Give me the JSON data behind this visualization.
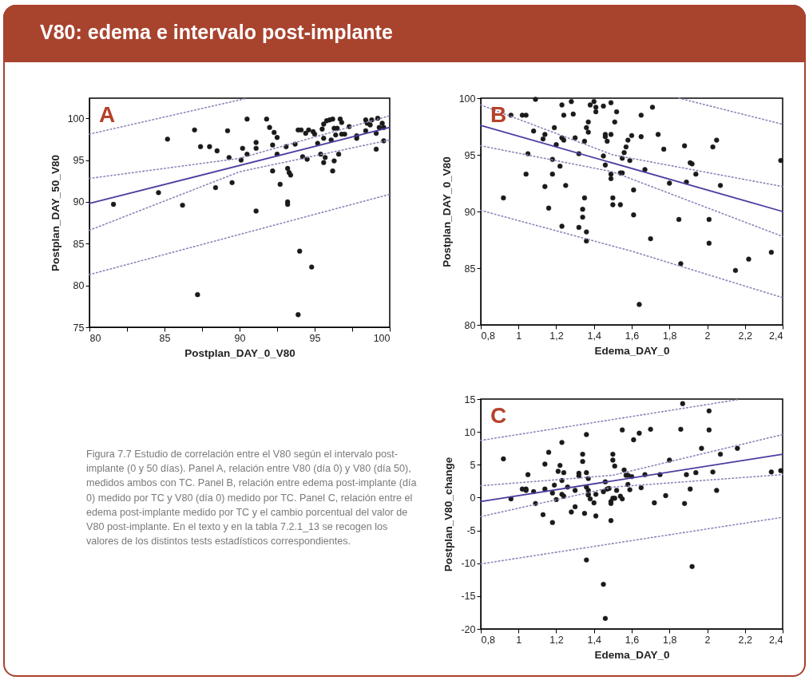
{
  "chart_data": [
    {
      "type": "scatter",
      "title": "V80: edema e intervalo post-implante",
      "xlabel": "Postplan_DAY_0_V80",
      "ylabel": "Postplan_DAY_50_V80",
      "annotations": [
        "A"
      ],
      "grid": false,
      "xlim": [
        80,
        100
      ],
      "xticks": [
        80,
        {
          "value": 82.5,
          "label": null
        },
        85,
        {
          "value": 87.5,
          "label": null
        },
        90,
        {
          "value": 92.5,
          "label": null
        },
        95,
        {
          "value": 97.5,
          "label": null
        },
        100
      ],
      "ylim": [
        75,
        102.4
      ],
      "yticks": [
        75,
        80,
        85,
        90,
        95,
        100
      ],
      "series": [
        {
          "type": "scatter",
          "marker": "circle",
          "color": "#1a1a1a",
          "x": [
            81.6,
            84.6,
            85.2,
            86.2,
            87.0,
            87.2,
            87.4,
            88.0,
            88.5,
            88.4,
            89.2,
            89.3,
            89.5,
            90.1,
            90.2,
            90.5,
            90.5,
            91.1,
            91.1,
            91.1,
            91.8,
            92.0,
            92.2,
            92.2,
            92.3,
            92.5,
            92.5,
            92.7,
            93.1,
            93.2,
            93.3,
            93.4,
            93.2,
            93.2,
            93.7,
            93.9,
            94.0,
            93.9,
            94.1,
            94.2,
            94.4,
            94.5,
            94.6,
            94.8,
            94.9,
            95.0,
            95.2,
            95.4,
            95.5,
            95.6,
            95.6,
            95.7,
            95.6,
            95.8,
            96.0,
            96.1,
            96.2,
            96.2,
            96.3,
            96.3,
            96.4,
            96.5,
            96.6,
            96.7,
            96.8,
            96.8,
            97.0,
            97.3,
            97.8,
            97.8,
            98.4,
            98.4,
            98.5,
            98.7,
            98.8,
            99.1,
            99.1,
            99.2,
            99.3,
            99.5,
            99.6,
            99.6
          ],
          "values": [
            89.7,
            91.1,
            97.5,
            89.6,
            98.6,
            78.9,
            96.6,
            96.6,
            96.1,
            91.7,
            98.5,
            95.3,
            92.3,
            95.0,
            96.4,
            99.9,
            95.7,
            97.1,
            96.4,
            88.9,
            99.9,
            98.9,
            96.8,
            93.7,
            98.3,
            97.7,
            95.7,
            92.1,
            96.6,
            94.0,
            93.5,
            93.2,
            90.0,
            89.7,
            96.9,
            98.6,
            84.1,
            76.5,
            98.6,
            95.4,
            98.2,
            95.1,
            98.6,
            82.2,
            98.4,
            98.1,
            97.0,
            95.7,
            98.7,
            99.3,
            94.7,
            95.3,
            97.6,
            99.7,
            99.8,
            97.4,
            99.9,
            93.7,
            94.9,
            98.8,
            98.0,
            98.8,
            95.7,
            99.9,
            99.5,
            98.1,
            98.1,
            99.0,
            97.9,
            97.6,
            99.8,
            98.5,
            99.4,
            99.2,
            99.8,
            96.3,
            98.2,
            100.0,
            98.9,
            99.4,
            97.3,
            98.9
          ]
        },
        {
          "type": "line",
          "color": "#8c84b8",
          "line_style": "dotted",
          "x": [
            80,
            90.5
          ],
          "values": [
            98.1,
            102.4
          ]
        },
        {
          "type": "line",
          "color": "#8c84b8",
          "line_style": "dotted",
          "x": [
            80,
            90,
            100
          ],
          "values": [
            92.8,
            95.2,
            100.3
          ]
        },
        {
          "type": "line",
          "color": "#8c84b8",
          "line_style": "dotted",
          "x": [
            80,
            90,
            100
          ],
          "values": [
            86.6,
            93.6,
            97.4
          ]
        },
        {
          "type": "line",
          "color": "#8c84b8",
          "line_style": "dotted",
          "x": [
            80,
            90,
            100
          ],
          "values": [
            81.3,
            86.1,
            90.9
          ]
        },
        {
          "type": "line",
          "color": "#4a3fa0",
          "line_style": "solid",
          "x": [
            80,
            100
          ],
          "values": [
            89.8,
            98.9
          ]
        }
      ]
    },
    {
      "type": "scatter",
      "xlabel": "Edema_DAY_0",
      "ylabel": "Postplan_DAY_0_V80",
      "annotations": [
        "B"
      ],
      "grid": false,
      "xlim": [
        0.8,
        2.4
      ],
      "xticks": [
        {
          "value": 0.8,
          "label": "0,8"
        },
        1,
        {
          "value": 1.2,
          "label": "1,2"
        },
        {
          "value": 1.4,
          "label": "1,4"
        },
        {
          "value": 1.6,
          "label": "1,6"
        },
        {
          "value": 1.8,
          "label": "1,8"
        },
        2,
        {
          "value": 2.2,
          "label": "2,2"
        },
        {
          "value": 2.4,
          "label": "2,4"
        }
      ],
      "ylim": [
        80,
        100
      ],
      "yticks": [
        80,
        85,
        90,
        95,
        100
      ],
      "series": [
        {
          "type": "scatter",
          "marker": "circle",
          "color": "#1a1a1a",
          "x": [
            0.92,
            0.96,
            1.02,
            1.04,
            1.05,
            1.04,
            1.08,
            1.09,
            1.13,
            1.14,
            1.14,
            1.16,
            1.18,
            1.18,
            1.19,
            1.2,
            1.22,
            1.23,
            1.23,
            1.23,
            1.24,
            1.24,
            1.25,
            1.28,
            1.29,
            1.3,
            1.32,
            1.32,
            1.34,
            1.34,
            1.35,
            1.35,
            1.36,
            1.36,
            1.36,
            1.37,
            1.37,
            1.38,
            1.4,
            1.41,
            1.41,
            1.45,
            1.45,
            1.46,
            1.46,
            1.46,
            1.47,
            1.49,
            1.49,
            1.49,
            1.49,
            1.5,
            1.5,
            1.51,
            1.52,
            1.54,
            1.55,
            1.54,
            1.55,
            1.56,
            1.57,
            1.58,
            1.59,
            1.6,
            1.61,
            1.61,
            1.64,
            1.65,
            1.65,
            1.67,
            1.7,
            1.71,
            1.74,
            1.77,
            1.8,
            1.85,
            1.86,
            1.88,
            1.89,
            1.91,
            1.92,
            1.94,
            2.01,
            2.01,
            2.03,
            2.05,
            2.07,
            2.15,
            2.22,
            2.34,
            2.39
          ],
          "values": [
            91.2,
            98.5,
            98.5,
            98.5,
            95.1,
            93.3,
            97.1,
            99.9,
            96.4,
            96.8,
            92.2,
            90.3,
            93.3,
            94.6,
            97.4,
            95.9,
            94.0,
            99.4,
            88.7,
            96.5,
            98.5,
            96.3,
            92.3,
            99.7,
            98.6,
            96.5,
            95.1,
            88.6,
            90.2,
            89.5,
            91.2,
            96.2,
            87.4,
            88.2,
            97.4,
            97.0,
            97.9,
            99.4,
            99.7,
            99.2,
            98.8,
            99.3,
            94.9,
            96.6,
            94.1,
            96.8,
            96.2,
            93.3,
            92.9,
            99.6,
            96.8,
            91.2,
            90.6,
            97.9,
            98.8,
            93.4,
            93.4,
            90.6,
            94.7,
            95.2,
            95.7,
            96.3,
            94.5,
            96.7,
            91.9,
            89.7,
            81.8,
            98.5,
            96.6,
            93.7,
            87.6,
            99.2,
            96.8,
            95.5,
            92.5,
            89.3,
            85.4,
            95.8,
            92.6,
            94.3,
            94.2,
            93.3,
            89.3,
            87.2,
            95.7,
            96.3,
            92.3,
            84.8,
            85.8,
            86.4,
            94.5
          ]
        },
        {
          "type": "line",
          "color": "#8c84b8",
          "line_style": "dotted",
          "x": [
            1.85,
            2.4
          ],
          "values": [
            100,
            97.7
          ]
        },
        {
          "type": "line",
          "color": "#8c84b8",
          "line_style": "dotted",
          "x": [
            0.8,
            1.5,
            2.4
          ],
          "values": [
            99.4,
            95.0,
            92.2
          ]
        },
        {
          "type": "line",
          "color": "#8c84b8",
          "line_style": "dotted",
          "x": [
            0.8,
            1.5,
            2.4
          ],
          "values": [
            95.8,
            93.5,
            87.8
          ]
        },
        {
          "type": "line",
          "color": "#8c84b8",
          "line_style": "dotted",
          "x": [
            0.8,
            1.6,
            2.4
          ],
          "values": [
            90.1,
            86.5,
            82.4
          ]
        },
        {
          "type": "line",
          "color": "#4a3fa0",
          "line_style": "solid",
          "x": [
            0.8,
            2.4
          ],
          "values": [
            97.6,
            90.0
          ]
        }
      ]
    },
    {
      "type": "other",
      "annotations": [
        "Figura 7.7 Estudio de correlación entre el V80 según el intervalo post-implante (0 y 50 días). Panel A, relación entre V80 (día 0) y V80 (día 50), medidos ambos con TC. Panel B, relación entre edema post-implante (día 0) medido por TC y V80 (día 0) medido por TC. Panel C, relación entre el edema post-implante medido por TC y el cambio porcentual del valor de V80 post-implante. En el texto y en la tabla 7.2.1_13 se recogen los valores de los distintos tests estadísticos correspondientes."
      ]
    },
    {
      "type": "scatter",
      "xlabel": "Edema_DAY_0",
      "ylabel": "Postplan_V80_change",
      "annotations": [
        "C"
      ],
      "grid": false,
      "xlim": [
        0.8,
        2.4
      ],
      "xticks": [
        {
          "value": 0.8,
          "label": "0,8"
        },
        1,
        {
          "value": 1.2,
          "label": "1,2"
        },
        {
          "value": 1.4,
          "label": "1,4"
        },
        {
          "value": 1.6,
          "label": "1,6"
        },
        {
          "value": 1.8,
          "label": "1,8"
        },
        2,
        {
          "value": 2.2,
          "label": "2,2"
        },
        {
          "value": 2.4,
          "label": "2,4"
        }
      ],
      "ylim": [
        -20,
        15
      ],
      "yticks": [
        -20,
        -15,
        -10,
        -5,
        0,
        5,
        10,
        15
      ],
      "series": [
        {
          "type": "scatter",
          "marker": "circle",
          "color": "#1a1a1a",
          "x": [
            0.92,
            0.96,
            1.02,
            1.04,
            1.04,
            1.05,
            1.08,
            1.09,
            1.13,
            1.14,
            1.14,
            1.16,
            1.18,
            1.18,
            1.19,
            1.2,
            1.21,
            1.22,
            1.23,
            1.23,
            1.23,
            1.24,
            1.24,
            1.26,
            1.28,
            1.3,
            1.3,
            1.32,
            1.32,
            1.35,
            1.34,
            1.34,
            1.36,
            1.36,
            1.36,
            1.36,
            1.37,
            1.37,
            1.37,
            1.37,
            1.38,
            1.4,
            1.41,
            1.41,
            1.45,
            1.45,
            1.46,
            1.46,
            1.47,
            1.48,
            1.49,
            1.49,
            1.49,
            1.5,
            1.5,
            1.5,
            1.51,
            1.51,
            1.52,
            1.54,
            1.55,
            1.55,
            1.56,
            1.57,
            1.58,
            1.58,
            1.59,
            1.6,
            1.61,
            1.64,
            1.65,
            1.67,
            1.7,
            1.72,
            1.75,
            1.78,
            1.8,
            1.86,
            1.87,
            1.88,
            1.89,
            1.91,
            1.92,
            1.94,
            1.97,
            2.01,
            2.01,
            2.03,
            2.05,
            2.07,
            2.16,
            2.34,
            2.39
          ],
          "values": [
            5.9,
            -0.2,
            1.3,
            1.3,
            1.1,
            3.5,
            0.9,
            -0.9,
            -2.6,
            1.3,
            5.1,
            6.9,
            -3.8,
            0.7,
            1.9,
            -0.3,
            4.0,
            4.9,
            0.5,
            2.6,
            8.4,
            3.8,
            0.2,
            1.6,
            -2.2,
            1.1,
            -1.4,
            3.7,
            3.3,
            -2.4,
            6.6,
            5.5,
            3.8,
            1.6,
            -9.5,
            9.6,
            2.9,
            1.1,
            0.4,
            0.5,
            -0.2,
            -0.8,
            -2.8,
            0.5,
            -13.2,
            0.9,
            2.4,
            -18.4,
            1.3,
            1.4,
            -3.5,
            -0.6,
            -0.9,
            -0.1,
            5.7,
            6.6,
            4.8,
            -0.1,
            1.1,
            0.2,
            -0.2,
            10.3,
            4.2,
            3.4,
            2.0,
            3.4,
            1.2,
            3.2,
            8.8,
            9.8,
            1.5,
            3.5,
            10.4,
            -0.8,
            3.5,
            0.3,
            5.7,
            10.4,
            14.3,
            -0.9,
            3.5,
            1.3,
            -10.5,
            3.8,
            7.5,
            13.2,
            10.3,
            3.9,
            1.1,
            6.6,
            7.5,
            3.9,
            4.1
          ]
        },
        {
          "type": "line",
          "color": "#8c84b8",
          "line_style": "dotted",
          "x": [
            0.8,
            2.16
          ],
          "values": [
            8.7,
            14.9
          ]
        },
        {
          "type": "line",
          "color": "#8c84b8",
          "line_style": "dotted",
          "x": [
            0.8,
            1.5,
            2.4
          ],
          "values": [
            1.8,
            3.4,
            9.6
          ]
        },
        {
          "type": "line",
          "color": "#8c84b8",
          "line_style": "dotted",
          "x": [
            0.8,
            1.5,
            2.4
          ],
          "values": [
            -2.9,
            1.6,
            3.5
          ]
        },
        {
          "type": "line",
          "color": "#8c84b8",
          "line_style": "dotted",
          "x": [
            0.8,
            2.4
          ],
          "values": [
            -10.1,
            -3.0
          ]
        },
        {
          "type": "line",
          "color": "#4a3fa0",
          "line_style": "solid",
          "x": [
            0.8,
            2.4
          ],
          "values": [
            -0.6,
            6.6
          ]
        }
      ]
    }
  ]
}
